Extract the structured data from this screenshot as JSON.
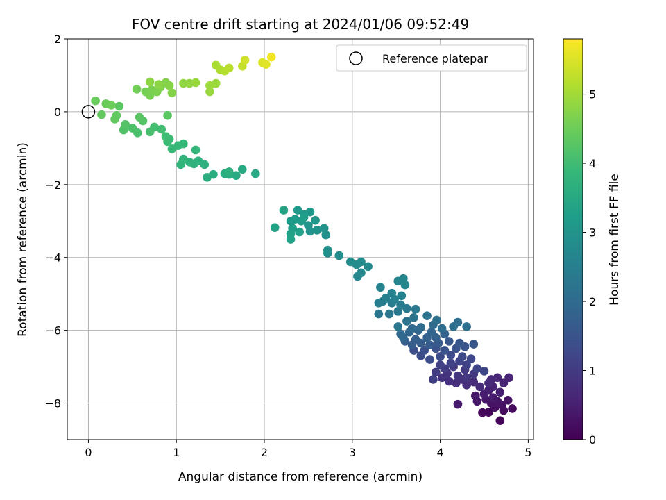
{
  "chart_data": {
    "type": "scatter",
    "title": "FOV centre drift starting at 2024/01/06 09:52:49",
    "xlabel": "Angular distance from reference (arcmin)",
    "ylabel": "Rotation from reference (arcmin)",
    "xlim": [
      -0.24,
      5.06
    ],
    "ylim": [
      -9.0,
      2.0
    ],
    "xticks": [
      0,
      1,
      2,
      3,
      4,
      5
    ],
    "yticks": [
      -8,
      -6,
      -4,
      -2,
      0,
      2
    ],
    "xtick_labels": [
      "0",
      "1",
      "2",
      "3",
      "4",
      "5"
    ],
    "ytick_labels": [
      "−8",
      "−6",
      "−4",
      "−2",
      "0",
      "2"
    ],
    "grid": true,
    "colormap": "viridis",
    "colorbar": {
      "label": "Hours from first FF file",
      "range": [
        0,
        5.8
      ],
      "ticks": [
        0,
        1,
        2,
        3,
        4,
        5
      ],
      "tick_labels": [
        "0",
        "1",
        "2",
        "3",
        "4",
        "5"
      ]
    },
    "legend": {
      "placement": "top-right",
      "entries": [
        {
          "label": "Reference platepar",
          "marker": "open-circle"
        }
      ]
    },
    "reference_point": {
      "x": 0,
      "y": 0
    },
    "points": [
      [
        4.68,
        -8.48,
        0.05
      ],
      [
        4.55,
        -8.25,
        0.08
      ],
      [
        4.48,
        -8.26,
        0.12
      ],
      [
        4.82,
        -8.15,
        0.15
      ],
      [
        4.72,
        -8.2,
        0.18
      ],
      [
        4.62,
        -8.12,
        0.22
      ],
      [
        4.7,
        -8.05,
        0.25
      ],
      [
        4.58,
        -8.0,
        0.28
      ],
      [
        4.77,
        -7.92,
        0.3
      ],
      [
        4.65,
        -7.95,
        0.33
      ],
      [
        4.52,
        -7.9,
        0.35
      ],
      [
        4.42,
        -7.95,
        0.38
      ],
      [
        4.4,
        -7.8,
        0.4
      ],
      [
        4.2,
        -8.03,
        0.42
      ],
      [
        4.6,
        -7.85,
        0.45
      ],
      [
        4.5,
        -7.75,
        0.48
      ],
      [
        4.55,
        -7.65,
        0.5
      ],
      [
        4.68,
        -7.7,
        0.52
      ],
      [
        4.6,
        -7.55,
        0.55
      ],
      [
        4.72,
        -7.45,
        0.58
      ],
      [
        4.78,
        -7.3,
        0.6
      ],
      [
        4.65,
        -7.3,
        0.62
      ],
      [
        4.58,
        -7.35,
        0.65
      ],
      [
        4.55,
        -7.45,
        0.68
      ],
      [
        4.45,
        -7.55,
        0.7
      ],
      [
        4.38,
        -7.42,
        0.72
      ],
      [
        4.3,
        -7.5,
        0.75
      ],
      [
        4.25,
        -7.35,
        0.78
      ],
      [
        4.18,
        -7.45,
        0.8
      ],
      [
        4.1,
        -7.4,
        0.82
      ],
      [
        4.02,
        -7.3,
        0.85
      ],
      [
        4.08,
        -7.18,
        0.88
      ],
      [
        4.2,
        -7.25,
        0.9
      ],
      [
        4.3,
        -7.3,
        0.92
      ],
      [
        4.38,
        -7.2,
        0.95
      ],
      [
        4.28,
        -7.08,
        0.98
      ],
      [
        4.15,
        -7.0,
        1.0
      ],
      [
        4.05,
        -7.05,
        1.02
      ],
      [
        3.95,
        -7.15,
        1.05
      ],
      [
        3.92,
        -7.35,
        1.08
      ],
      [
        4.0,
        -6.95,
        1.1
      ],
      [
        4.12,
        -6.9,
        1.12
      ],
      [
        4.22,
        -6.85,
        1.15
      ],
      [
        4.3,
        -6.95,
        1.18
      ],
      [
        4.42,
        -7.05,
        1.2
      ],
      [
        4.5,
        -7.12,
        1.22
      ],
      [
        4.35,
        -6.78,
        1.25
      ],
      [
        4.25,
        -6.72,
        1.28
      ],
      [
        4.12,
        -6.68,
        1.3
      ],
      [
        4.0,
        -6.72,
        1.32
      ],
      [
        3.88,
        -6.8,
        1.35
      ],
      [
        3.78,
        -6.7,
        1.38
      ],
      [
        3.7,
        -6.55,
        1.4
      ],
      [
        3.82,
        -6.55,
        1.42
      ],
      [
        3.95,
        -6.5,
        1.45
      ],
      [
        4.05,
        -6.55,
        1.48
      ],
      [
        4.18,
        -6.5,
        1.5
      ],
      [
        4.28,
        -6.45,
        1.52
      ],
      [
        4.38,
        -6.38,
        1.55
      ],
      [
        4.22,
        -6.35,
        1.58
      ],
      [
        4.1,
        -6.3,
        1.6
      ],
      [
        3.98,
        -6.35,
        1.62
      ],
      [
        3.88,
        -6.4,
        1.65
      ],
      [
        3.78,
        -6.35,
        1.68
      ],
      [
        3.68,
        -6.4,
        1.7
      ],
      [
        3.6,
        -6.3,
        1.72
      ],
      [
        3.72,
        -6.25,
        1.75
      ],
      [
        3.85,
        -6.2,
        1.78
      ],
      [
        3.95,
        -6.2,
        1.8
      ],
      [
        4.05,
        -6.1,
        1.82
      ],
      [
        3.9,
        -6.05,
        1.85
      ],
      [
        3.75,
        -6.0,
        1.88
      ],
      [
        3.65,
        -6.05,
        1.9
      ],
      [
        3.58,
        -6.2,
        1.92
      ],
      [
        3.55,
        -6.1,
        1.95
      ],
      [
        3.68,
        -5.95,
        1.98
      ],
      [
        3.78,
        -5.92,
        2.0
      ],
      [
        3.92,
        -5.85,
        2.02
      ],
      [
        4.02,
        -5.95,
        2.05
      ],
      [
        4.15,
        -5.9,
        2.08
      ],
      [
        4.3,
        -5.9,
        2.1
      ],
      [
        4.2,
        -5.78,
        2.12
      ],
      [
        3.96,
        -5.72,
        2.15
      ],
      [
        3.85,
        -5.6,
        2.18
      ],
      [
        3.7,
        -5.65,
        2.2
      ],
      [
        3.62,
        -5.75,
        2.22
      ],
      [
        3.52,
        -5.9,
        2.25
      ],
      [
        3.3,
        -5.55,
        2.28
      ],
      [
        3.42,
        -5.55,
        2.3
      ],
      [
        3.52,
        -5.48,
        2.32
      ],
      [
        3.62,
        -5.4,
        2.35
      ],
      [
        3.72,
        -5.42,
        2.38
      ],
      [
        3.55,
        -5.3,
        2.4
      ],
      [
        3.45,
        -5.25,
        2.42
      ],
      [
        3.35,
        -5.2,
        2.45
      ],
      [
        3.3,
        -5.25,
        2.48
      ],
      [
        3.38,
        -5.12,
        2.5
      ],
      [
        3.48,
        -5.15,
        2.52
      ],
      [
        3.56,
        -5.05,
        2.55
      ],
      [
        3.45,
        -4.98,
        2.58
      ],
      [
        3.32,
        -4.82,
        2.6
      ],
      [
        3.52,
        -4.65,
        2.62
      ],
      [
        3.58,
        -4.58,
        2.65
      ],
      [
        3.6,
        -4.75,
        2.68
      ],
      [
        3.06,
        -4.52,
        2.7
      ],
      [
        3.1,
        -4.42,
        2.72
      ],
      [
        3.18,
        -4.25,
        2.75
      ],
      [
        3.05,
        -4.2,
        2.78
      ],
      [
        3.1,
        -4.12,
        2.8
      ],
      [
        2.98,
        -4.12,
        2.82
      ],
      [
        2.85,
        -3.95,
        2.85
      ],
      [
        2.72,
        -3.88,
        2.88
      ],
      [
        2.72,
        -3.8,
        2.9
      ],
      [
        2.7,
        -3.38,
        2.92
      ],
      [
        2.68,
        -3.2,
        2.95
      ],
      [
        2.6,
        -3.25,
        2.98
      ],
      [
        2.52,
        -3.28,
        3.0
      ],
      [
        2.5,
        -3.12,
        3.02
      ],
      [
        2.58,
        -2.98,
        3.05
      ],
      [
        2.52,
        -2.75,
        3.08
      ],
      [
        2.45,
        -2.82,
        3.1
      ],
      [
        2.38,
        -2.7,
        3.12
      ],
      [
        2.3,
        -3.0,
        3.15
      ],
      [
        2.35,
        -2.95,
        3.18
      ],
      [
        2.42,
        -3.0,
        3.2
      ],
      [
        2.45,
        -2.9,
        3.22
      ],
      [
        2.32,
        -3.2,
        3.25
      ],
      [
        2.4,
        -3.3,
        3.28
      ],
      [
        2.3,
        -3.35,
        3.3
      ],
      [
        2.3,
        -3.5,
        3.32
      ],
      [
        2.12,
        -3.18,
        3.35
      ],
      [
        2.22,
        -2.7,
        3.38
      ],
      [
        1.9,
        -1.7,
        3.45
      ],
      [
        1.75,
        -1.58,
        3.5
      ],
      [
        1.68,
        -1.75,
        3.52
      ],
      [
        1.6,
        -1.72,
        3.55
      ],
      [
        1.55,
        -1.7,
        3.58
      ],
      [
        1.42,
        -1.72,
        3.6
      ],
      [
        1.35,
        -1.8,
        3.62
      ],
      [
        1.6,
        -1.65,
        3.65
      ],
      [
        1.32,
        -1.45,
        3.68
      ],
      [
        1.25,
        -1.35,
        3.7
      ],
      [
        1.2,
        -1.43,
        3.72
      ],
      [
        1.15,
        -1.38,
        3.75
      ],
      [
        1.08,
        -1.3,
        3.78
      ],
      [
        1.05,
        -1.45,
        3.8
      ],
      [
        1.22,
        -1.05,
        3.82
      ],
      [
        1.08,
        -0.88,
        3.85
      ],
      [
        1.02,
        -0.93,
        3.88
      ],
      [
        0.95,
        -1.02,
        3.9
      ],
      [
        0.9,
        -0.82,
        3.92
      ],
      [
        0.92,
        -0.75,
        3.95
      ],
      [
        0.88,
        -0.68,
        3.98
      ],
      [
        0.83,
        -0.48,
        4.0
      ],
      [
        0.75,
        -0.42,
        4.05
      ],
      [
        0.7,
        -0.55,
        4.08
      ],
      [
        0.56,
        -0.58,
        4.12
      ],
      [
        0.5,
        -0.45,
        4.15
      ],
      [
        0.4,
        -0.5,
        4.2
      ],
      [
        0.42,
        -0.35,
        4.22
      ],
      [
        0.62,
        -0.25,
        4.25
      ],
      [
        0.58,
        -0.15,
        4.28
      ],
      [
        0.9,
        -0.1,
        4.3
      ],
      [
        0.35,
        0.15,
        4.32
      ],
      [
        0.32,
        -0.1,
        4.35
      ],
      [
        0.3,
        -0.2,
        4.38
      ],
      [
        0.15,
        -0.08,
        4.4
      ],
      [
        0.08,
        0.3,
        4.45
      ],
      [
        0.2,
        0.22,
        4.48
      ],
      [
        0.26,
        0.18,
        4.5
      ],
      [
        0.55,
        0.62,
        4.55
      ],
      [
        0.65,
        0.55,
        4.58
      ],
      [
        0.7,
        0.45,
        4.6
      ],
      [
        0.72,
        0.6,
        4.62
      ],
      [
        0.78,
        0.55,
        4.65
      ],
      [
        0.82,
        0.68,
        4.68
      ],
      [
        0.88,
        0.8,
        4.7
      ],
      [
        0.95,
        0.52,
        4.72
      ],
      [
        0.92,
        0.72,
        4.75
      ],
      [
        0.8,
        0.75,
        4.78
      ],
      [
        0.7,
        0.82,
        4.8
      ],
      [
        1.08,
        0.78,
        4.82
      ],
      [
        1.15,
        0.78,
        4.85
      ],
      [
        1.22,
        0.8,
        4.88
      ],
      [
        1.38,
        0.55,
        4.9
      ],
      [
        1.45,
        0.78,
        4.92
      ],
      [
        1.38,
        0.72,
        4.95
      ],
      [
        1.45,
        1.28,
        5.05
      ],
      [
        1.5,
        1.15,
        5.1
      ],
      [
        1.55,
        1.12,
        5.15
      ],
      [
        1.6,
        1.2,
        5.2
      ],
      [
        1.75,
        1.25,
        5.3
      ],
      [
        1.78,
        1.42,
        5.4
      ],
      [
        1.98,
        1.35,
        5.5
      ],
      [
        2.02,
        1.3,
        5.55
      ],
      [
        2.08,
        1.5,
        5.7
      ]
    ]
  }
}
